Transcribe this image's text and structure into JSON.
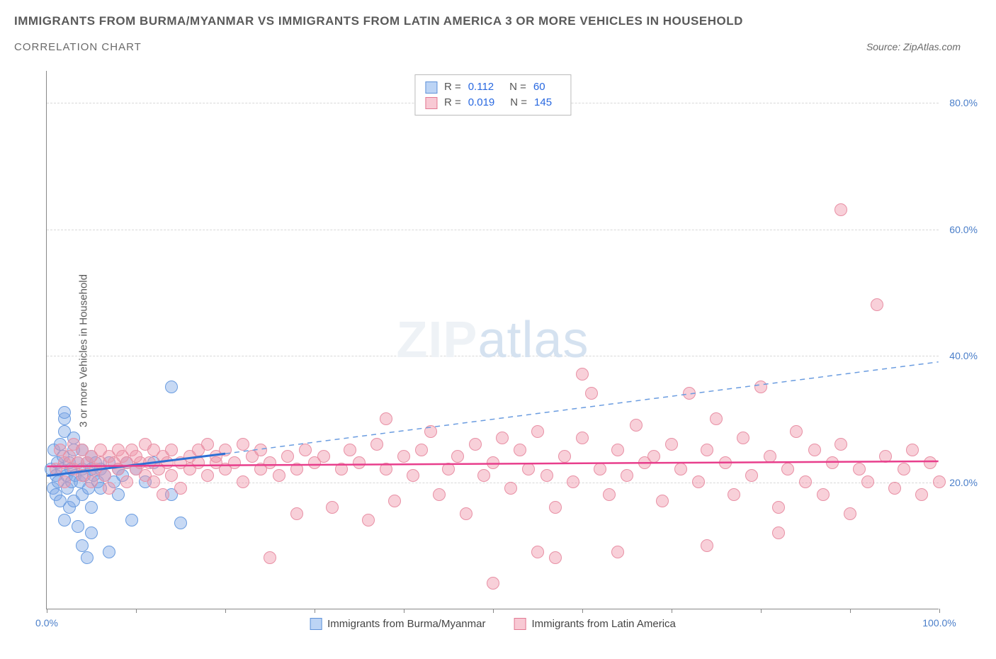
{
  "title": "IMMIGRANTS FROM BURMA/MYANMAR VS IMMIGRANTS FROM LATIN AMERICA 3 OR MORE VEHICLES IN HOUSEHOLD",
  "subtitle": "CORRELATION CHART",
  "source": "Source: ZipAtlas.com",
  "y_axis_label": "3 or more Vehicles in Household",
  "watermark_a": "ZIP",
  "watermark_b": "atlas",
  "chart": {
    "type": "scatter",
    "background_color": "#ffffff",
    "grid_color": "#d8d8d8",
    "axis_color": "#888888",
    "xlim": [
      0,
      100
    ],
    "ylim": [
      0,
      85
    ],
    "x_ticks": [
      0,
      10,
      20,
      30,
      40,
      50,
      60,
      70,
      80,
      90,
      100
    ],
    "x_tick_labels": {
      "0": "0.0%",
      "100": "100.0%"
    },
    "y_ticks": [
      20,
      40,
      60,
      80
    ],
    "y_tick_labels": {
      "20": "20.0%",
      "40": "40.0%",
      "60": "60.0%",
      "80": "80.0%"
    },
    "marker_radius": 9,
    "marker_opacity": 0.55,
    "legend_stats": [
      {
        "swatch_fill": "#bcd4f5",
        "swatch_border": "#5e91d8",
        "r": "0.112",
        "n": "60"
      },
      {
        "swatch_fill": "#f8c9d4",
        "swatch_border": "#e27892",
        "r": "0.019",
        "n": "145"
      }
    ],
    "series_legend": [
      {
        "swatch_fill": "#bcd4f5",
        "swatch_border": "#5e91d8",
        "label": "Immigrants from Burma/Myanmar"
      },
      {
        "swatch_fill": "#f8c9d4",
        "swatch_border": "#e27892",
        "label": "Immigrants from Latin America"
      }
    ],
    "series": [
      {
        "name": "burma",
        "fill": "rgba(130,170,230,0.45)",
        "stroke": "#6a9ce0",
        "trend": {
          "x1": 0,
          "y1": 21,
          "x2": 20,
          "y2": 24.5,
          "solid_color": "#2e6fd4",
          "solid_width": 3,
          "x3": 100,
          "y3": 39,
          "dash_color": "#6a9ce0",
          "dash_width": 1.5
        },
        "points": [
          [
            0.5,
            22
          ],
          [
            0.7,
            19
          ],
          [
            0.8,
            25
          ],
          [
            1,
            21
          ],
          [
            1,
            18
          ],
          [
            1.2,
            23
          ],
          [
            1.3,
            20
          ],
          [
            1.5,
            26
          ],
          [
            1.5,
            17
          ],
          [
            1.7,
            22
          ],
          [
            1.8,
            24
          ],
          [
            2,
            30
          ],
          [
            2,
            31
          ],
          [
            2,
            28
          ],
          [
            2,
            14
          ],
          [
            2.2,
            21
          ],
          [
            2.3,
            19
          ],
          [
            2.5,
            23
          ],
          [
            2.5,
            16
          ],
          [
            2.7,
            22
          ],
          [
            2.8,
            20
          ],
          [
            3,
            25
          ],
          [
            3,
            27
          ],
          [
            3,
            17
          ],
          [
            3.2,
            21
          ],
          [
            3.5,
            23
          ],
          [
            3.5,
            13
          ],
          [
            3.7,
            20
          ],
          [
            4,
            22
          ],
          [
            4,
            25
          ],
          [
            4,
            18
          ],
          [
            4,
            10
          ],
          [
            4.2,
            21
          ],
          [
            4.5,
            23
          ],
          [
            4.5,
            8
          ],
          [
            4.7,
            19
          ],
          [
            5,
            22
          ],
          [
            5,
            24
          ],
          [
            5,
            16
          ],
          [
            5,
            12
          ],
          [
            5.2,
            21
          ],
          [
            5.5,
            23
          ],
          [
            5.7,
            20
          ],
          [
            6,
            22
          ],
          [
            6,
            19
          ],
          [
            6.5,
            21
          ],
          [
            7,
            23
          ],
          [
            7,
            9
          ],
          [
            7.5,
            20
          ],
          [
            8,
            22
          ],
          [
            8,
            18
          ],
          [
            8.5,
            21
          ],
          [
            9,
            23
          ],
          [
            9.5,
            14
          ],
          [
            10,
            22
          ],
          [
            11,
            20
          ],
          [
            12,
            23
          ],
          [
            14,
            35
          ],
          [
            14,
            18
          ],
          [
            15,
            13.5
          ]
        ]
      },
      {
        "name": "latin",
        "fill": "rgba(240,150,170,0.45)",
        "stroke": "#e890a5",
        "trend": {
          "x1": 0,
          "y1": 22.5,
          "x2": 100,
          "y2": 23.3,
          "solid_color": "#e83e8c",
          "solid_width": 2.5,
          "x3": 100,
          "y3": 23.3,
          "dash_color": "#e890a5",
          "dash_width": 0
        },
        "points": [
          [
            1,
            22
          ],
          [
            1.5,
            25
          ],
          [
            2,
            23
          ],
          [
            2,
            20
          ],
          [
            2.5,
            24
          ],
          [
            3,
            22
          ],
          [
            3,
            26
          ],
          [
            3.5,
            23
          ],
          [
            4,
            25
          ],
          [
            4,
            21
          ],
          [
            4.5,
            23
          ],
          [
            5,
            24
          ],
          [
            5,
            20
          ],
          [
            5.5,
            22
          ],
          [
            6,
            25
          ],
          [
            6,
            23
          ],
          [
            6.5,
            21
          ],
          [
            7,
            24
          ],
          [
            7,
            19
          ],
          [
            7.5,
            23
          ],
          [
            8,
            25
          ],
          [
            8,
            22
          ],
          [
            8.5,
            24
          ],
          [
            9,
            23
          ],
          [
            9,
            20
          ],
          [
            9.5,
            25
          ],
          [
            10,
            22
          ],
          [
            10,
            24
          ],
          [
            10.5,
            23
          ],
          [
            11,
            21
          ],
          [
            11,
            26
          ],
          [
            11.5,
            23
          ],
          [
            12,
            25
          ],
          [
            12,
            20
          ],
          [
            12.5,
            22
          ],
          [
            13,
            24
          ],
          [
            13,
            18
          ],
          [
            13.5,
            23
          ],
          [
            14,
            25
          ],
          [
            14,
            21
          ],
          [
            15,
            23
          ],
          [
            15,
            19
          ],
          [
            16,
            24
          ],
          [
            16,
            22
          ],
          [
            17,
            25
          ],
          [
            17,
            23
          ],
          [
            18,
            21
          ],
          [
            18,
            26
          ],
          [
            19,
            23
          ],
          [
            19,
            24
          ],
          [
            20,
            22
          ],
          [
            20,
            25
          ],
          [
            21,
            23
          ],
          [
            22,
            26
          ],
          [
            22,
            20
          ],
          [
            23,
            24
          ],
          [
            24,
            22
          ],
          [
            24,
            25
          ],
          [
            25,
            8
          ],
          [
            25,
            23
          ],
          [
            26,
            21
          ],
          [
            27,
            24
          ],
          [
            28,
            22
          ],
          [
            28,
            15
          ],
          [
            29,
            25
          ],
          [
            30,
            23
          ],
          [
            31,
            24
          ],
          [
            32,
            16
          ],
          [
            33,
            22
          ],
          [
            34,
            25
          ],
          [
            35,
            23
          ],
          [
            36,
            14
          ],
          [
            37,
            26
          ],
          [
            38,
            30
          ],
          [
            38,
            22
          ],
          [
            39,
            17
          ],
          [
            40,
            24
          ],
          [
            41,
            21
          ],
          [
            42,
            25
          ],
          [
            43,
            28
          ],
          [
            44,
            18
          ],
          [
            45,
            22
          ],
          [
            46,
            24
          ],
          [
            47,
            15
          ],
          [
            48,
            26
          ],
          [
            49,
            21
          ],
          [
            50,
            4
          ],
          [
            50,
            23
          ],
          [
            51,
            27
          ],
          [
            52,
            19
          ],
          [
            53,
            25
          ],
          [
            54,
            22
          ],
          [
            55,
            28
          ],
          [
            55,
            9
          ],
          [
            56,
            21
          ],
          [
            57,
            16
          ],
          [
            57,
            8
          ],
          [
            58,
            24
          ],
          [
            59,
            20
          ],
          [
            60,
            27
          ],
          [
            60,
            37
          ],
          [
            61,
            34
          ],
          [
            62,
            22
          ],
          [
            63,
            18
          ],
          [
            64,
            25
          ],
          [
            64,
            9
          ],
          [
            65,
            21
          ],
          [
            66,
            29
          ],
          [
            67,
            23
          ],
          [
            68,
            24
          ],
          [
            69,
            17
          ],
          [
            70,
            26
          ],
          [
            71,
            22
          ],
          [
            72,
            34
          ],
          [
            73,
            20
          ],
          [
            74,
            25
          ],
          [
            74,
            10
          ],
          [
            75,
            30
          ],
          [
            76,
            23
          ],
          [
            77,
            18
          ],
          [
            78,
            27
          ],
          [
            79,
            21
          ],
          [
            80,
            35
          ],
          [
            81,
            24
          ],
          [
            82,
            16
          ],
          [
            82,
            12
          ],
          [
            83,
            22
          ],
          [
            84,
            28
          ],
          [
            85,
            20
          ],
          [
            86,
            25
          ],
          [
            87,
            18
          ],
          [
            88,
            23
          ],
          [
            89,
            63
          ],
          [
            89,
            26
          ],
          [
            90,
            15
          ],
          [
            91,
            22
          ],
          [
            92,
            20
          ],
          [
            93,
            48
          ],
          [
            94,
            24
          ],
          [
            95,
            19
          ],
          [
            96,
            22
          ],
          [
            97,
            25
          ],
          [
            98,
            18
          ],
          [
            99,
            23
          ],
          [
            100,
            20
          ]
        ]
      }
    ]
  }
}
